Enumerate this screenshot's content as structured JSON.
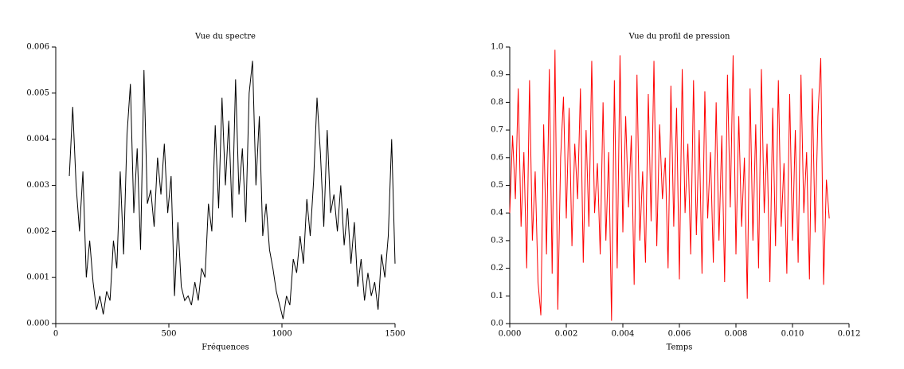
{
  "chart_data": [
    {
      "type": "line",
      "title": "Vue du spectre",
      "x_label": "Fréquences",
      "xlim": [
        0,
        1500
      ],
      "ylim": [
        0,
        0.006
      ],
      "xticks": [
        0,
        500,
        1000,
        1500
      ],
      "yticks": [
        {
          "value": 0,
          "label": "0.000"
        },
        {
          "value": 0.001,
          "label": "0.001"
        },
        {
          "value": 0.002,
          "label": "0.002"
        },
        {
          "value": 0.003,
          "label": "0.003"
        },
        {
          "value": 0.004,
          "label": "0.004"
        },
        {
          "value": 0.005,
          "label": "0.005"
        },
        {
          "value": 0.006,
          "label": "0.006"
        }
      ],
      "series": [
        {
          "color": "#000000",
          "x": [
            60,
            75,
            90,
            105,
            120,
            135,
            150,
            165,
            180,
            195,
            210,
            225,
            240,
            255,
            270,
            285,
            300,
            315,
            330,
            345,
            360,
            375,
            390,
            405,
            420,
            435,
            450,
            465,
            480,
            495,
            510,
            525,
            540,
            555,
            570,
            585,
            600,
            615,
            630,
            645,
            660,
            675,
            690,
            705,
            720,
            735,
            750,
            765,
            780,
            795,
            810,
            825,
            840,
            855,
            870,
            885,
            900,
            915,
            930,
            945,
            960,
            975,
            990,
            1005,
            1020,
            1035,
            1050,
            1065,
            1080,
            1095,
            1110,
            1125,
            1140,
            1155,
            1170,
            1185,
            1200,
            1215,
            1230,
            1245,
            1260,
            1275,
            1290,
            1305,
            1320,
            1335,
            1350,
            1365,
            1380,
            1395,
            1410,
            1425,
            1440,
            1455,
            1470,
            1485,
            1500
          ],
          "values": [
            0.0032,
            0.0047,
            0.003,
            0.002,
            0.0033,
            0.001,
            0.0018,
            0.0009,
            0.0003,
            0.0006,
            0.0002,
            0.0007,
            0.0005,
            0.0018,
            0.0012,
            0.0033,
            0.0015,
            0.0041,
            0.0052,
            0.0024,
            0.0038,
            0.0016,
            0.0055,
            0.0026,
            0.0029,
            0.0021,
            0.0036,
            0.0028,
            0.0039,
            0.0024,
            0.0032,
            0.0006,
            0.0022,
            0.0008,
            0.0005,
            0.0006,
            0.0004,
            0.0009,
            0.0005,
            0.0012,
            0.001,
            0.0026,
            0.002,
            0.0043,
            0.0025,
            0.0049,
            0.003,
            0.0044,
            0.0023,
            0.0053,
            0.0028,
            0.0038,
            0.0022,
            0.005,
            0.0057,
            0.003,
            0.0045,
            0.0019,
            0.0026,
            0.0016,
            0.0012,
            0.0007,
            0.0004,
            0.0001,
            0.0006,
            0.0004,
            0.0014,
            0.0011,
            0.0019,
            0.0013,
            0.0027,
            0.0019,
            0.0031,
            0.0049,
            0.0037,
            0.0021,
            0.0042,
            0.0024,
            0.0028,
            0.002,
            0.003,
            0.0017,
            0.0025,
            0.0013,
            0.0022,
            0.0008,
            0.0014,
            0.0005,
            0.0011,
            0.0006,
            0.0009,
            0.0003,
            0.0015,
            0.001,
            0.0019,
            0.004,
            0.0013
          ]
        }
      ]
    },
    {
      "type": "line",
      "title": "Vue du profil de pression",
      "x_label": "Temps",
      "xlim": [
        0,
        0.012
      ],
      "ylim": [
        0,
        1
      ],
      "xticks": [
        {
          "value": 0,
          "label": "0.000"
        },
        {
          "value": 0.002,
          "label": "0.002"
        },
        {
          "value": 0.004,
          "label": "0.004"
        },
        {
          "value": 0.006,
          "label": "0.006"
        },
        {
          "value": 0.008,
          "label": "0.008"
        },
        {
          "value": 0.01,
          "label": "0.010"
        },
        {
          "value": 0.012,
          "label": "0.012"
        }
      ],
      "yticks": [
        {
          "value": 0,
          "label": "0.0"
        },
        0.1,
        0.2,
        0.3,
        0.4,
        0.5,
        0.6,
        0.7,
        0.8,
        0.9,
        {
          "value": 1,
          "label": "1.0"
        }
      ],
      "series": [
        {
          "color": "#ff0000",
          "x": [
            0,
            0.0001,
            0.0002,
            0.0003,
            0.0004,
            0.0005,
            0.0006,
            0.0007,
            0.0008,
            0.0009,
            0.001,
            0.0011,
            0.0012,
            0.0013,
            0.0014,
            0.0015,
            0.0016,
            0.0017,
            0.0018,
            0.0019,
            0.002,
            0.0021,
            0.0022,
            0.0023,
            0.0024,
            0.0025,
            0.0026,
            0.0027,
            0.0028,
            0.0029,
            0.003,
            0.0031,
            0.0032,
            0.0033,
            0.0034,
            0.0035,
            0.0036,
            0.0037,
            0.0038,
            0.0039,
            0.004,
            0.0041,
            0.0042,
            0.0043,
            0.0044,
            0.0045,
            0.0046,
            0.0047,
            0.0048,
            0.0049,
            0.005,
            0.0051,
            0.0052,
            0.0053,
            0.0054,
            0.0055,
            0.0056,
            0.0057,
            0.0058,
            0.0059,
            0.006,
            0.0061,
            0.0062,
            0.0063,
            0.0064,
            0.0065,
            0.0066,
            0.0067,
            0.0068,
            0.0069,
            0.007,
            0.0071,
            0.0072,
            0.0073,
            0.0074,
            0.0075,
            0.0076,
            0.0077,
            0.0078,
            0.0079,
            0.008,
            0.0081,
            0.0082,
            0.0083,
            0.0084,
            0.0085,
            0.0086,
            0.0087,
            0.0088,
            0.0089,
            0.009,
            0.0091,
            0.0092,
            0.0093,
            0.0094,
            0.0095,
            0.0096,
            0.0097,
            0.0098,
            0.0099,
            0.01,
            0.0101,
            0.0102,
            0.0103,
            0.0104,
            0.0105,
            0.0106,
            0.0107,
            0.0108,
            0.0109,
            0.011,
            0.0111,
            0.0112,
            0.0113
          ],
          "values": [
            0.4,
            0.68,
            0.45,
            0.85,
            0.35,
            0.62,
            0.2,
            0.88,
            0.3,
            0.55,
            0.15,
            0.03,
            0.72,
            0.25,
            0.92,
            0.18,
            0.99,
            0.05,
            0.6,
            0.82,
            0.38,
            0.78,
            0.28,
            0.65,
            0.45,
            0.85,
            0.22,
            0.7,
            0.35,
            0.95,
            0.4,
            0.58,
            0.25,
            0.8,
            0.3,
            0.62,
            0.01,
            0.88,
            0.2,
            0.97,
            0.33,
            0.75,
            0.42,
            0.68,
            0.14,
            0.9,
            0.3,
            0.55,
            0.22,
            0.83,
            0.37,
            0.95,
            0.28,
            0.72,
            0.45,
            0.6,
            0.2,
            0.86,
            0.35,
            0.78,
            0.16,
            0.92,
            0.4,
            0.65,
            0.25,
            0.88,
            0.32,
            0.7,
            0.18,
            0.84,
            0.38,
            0.62,
            0.22,
            0.8,
            0.3,
            0.68,
            0.15,
            0.9,
            0.42,
            0.97,
            0.25,
            0.75,
            0.35,
            0.6,
            0.09,
            0.85,
            0.3,
            0.72,
            0.2,
            0.92,
            0.4,
            0.65,
            0.15,
            0.78,
            0.28,
            0.88,
            0.35,
            0.58,
            0.18,
            0.83,
            0.3,
            0.7,
            0.22,
            0.9,
            0.4,
            0.62,
            0.16,
            0.85,
            0.33,
            0.75,
            0.96,
            0.14,
            0.52,
            0.38
          ]
        }
      ]
    }
  ]
}
